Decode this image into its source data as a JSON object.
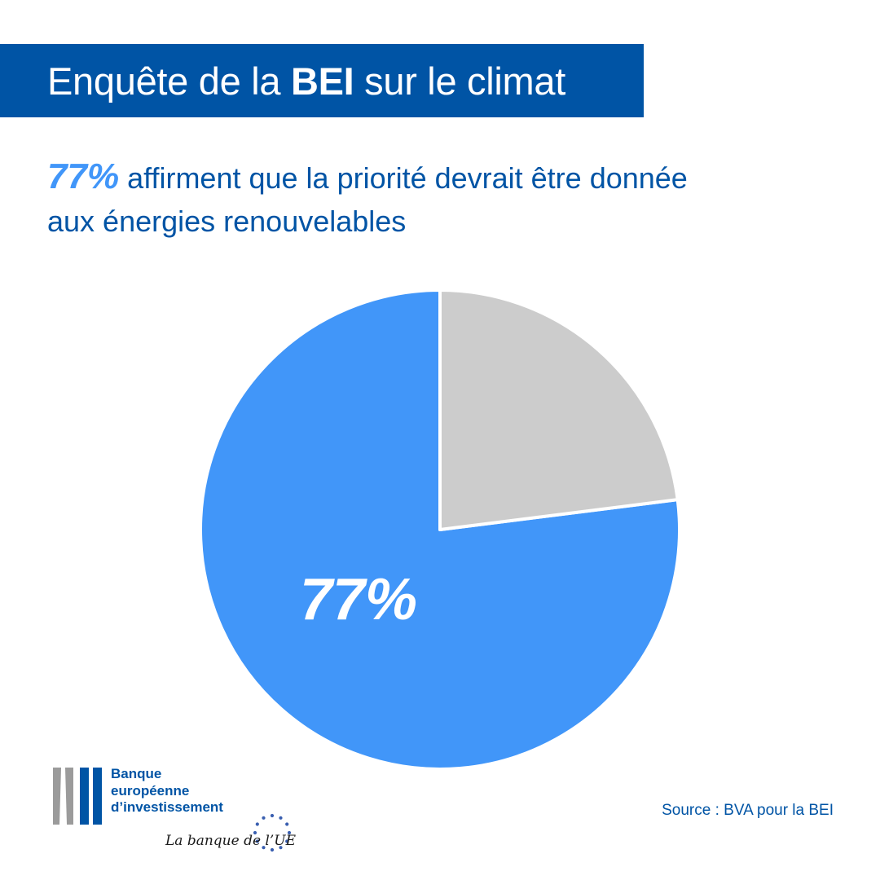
{
  "title": {
    "prefix": "Enquête de la ",
    "bold": "BEI",
    "suffix": " sur le climat"
  },
  "headline": {
    "highlight": "77%",
    "text_line1": " affirment que la priorité devrait être donnée",
    "text_line2": "aux énergies renouvelables"
  },
  "colors": {
    "brand_blue": "#0054a5",
    "slice_main": "#4196f9",
    "slice_rest": "#cccccc"
  },
  "chart_data": {
    "type": "pie",
    "slices": [
      {
        "value": 77,
        "label": "77%",
        "color": "#4196f9"
      },
      {
        "value": 23,
        "label": "",
        "color": "#cccccc"
      }
    ]
  },
  "logo": {
    "name_line1": "Banque",
    "name_line2": "européenne",
    "name_line3": "d’investissement",
    "tagline": "La banque de l’UE"
  },
  "source": "Source : BVA pour la BEI"
}
